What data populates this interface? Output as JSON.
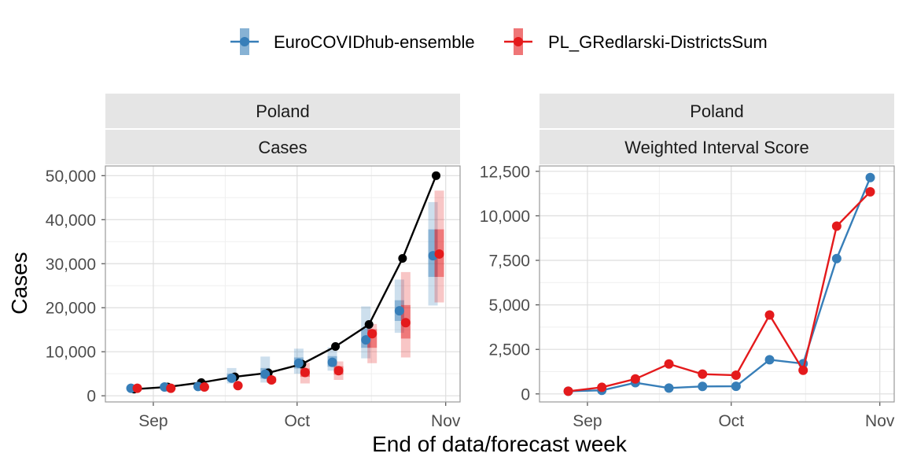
{
  "legend": [
    {
      "name": "EuroCOVIDhub-ensemble",
      "color": "#377EB8"
    },
    {
      "name": "PL_GRedlarski-DistrictsSum",
      "color": "#E41A1C"
    }
  ],
  "x_axis_title": "End of data/forecast week",
  "y_axis_title": "Cases",
  "chart_data": [
    {
      "type": "line",
      "strips": [
        "Poland",
        "Cases"
      ],
      "x_ticks": [
        {
          "date": "2021-09-01",
          "label": "Sep"
        },
        {
          "date": "2021-10-01",
          "label": "Oct"
        },
        {
          "date": "2021-11-01",
          "label": "Nov"
        }
      ],
      "xlim": [
        "2021-08-22",
        "2021-11-04"
      ],
      "y_ticks": [
        0,
        10000,
        20000,
        30000,
        40000,
        50000
      ],
      "y_tick_labels": [
        "0",
        "10,000",
        "20,000",
        "30,000",
        "40,000",
        "50,000"
      ],
      "ylim": [
        -1400,
        52200
      ],
      "grid": true,
      "observed": {
        "color": "#000000",
        "points": [
          {
            "x": "2021-08-28",
            "y": 1500
          },
          {
            "x": "2021-09-04",
            "y": 2000
          },
          {
            "x": "2021-09-11",
            "y": 3000
          },
          {
            "x": "2021-09-18",
            "y": 4300
          },
          {
            "x": "2021-09-25",
            "y": 5200
          },
          {
            "x": "2021-10-02",
            "y": 7200
          },
          {
            "x": "2021-10-09",
            "y": 11200
          },
          {
            "x": "2021-10-16",
            "y": 16200
          },
          {
            "x": "2021-10-23",
            "y": 31200
          },
          {
            "x": "2021-10-30",
            "y": 50000
          }
        ]
      },
      "forecasts": [
        {
          "model": "EuroCOVIDhub-ensemble",
          "color": "#377EB8",
          "points": [
            {
              "x": "2021-08-28",
              "median": 1700,
              "lo90": 1400,
              "hi90": 2100,
              "lo50": 1500,
              "hi50": 1900
            },
            {
              "x": "2021-09-04",
              "median": 2000,
              "lo90": 1600,
              "hi90": 2600,
              "lo50": 1800,
              "hi50": 2300
            },
            {
              "x": "2021-09-11",
              "median": 2100,
              "lo90": 1700,
              "hi90": 2800,
              "lo50": 1900,
              "hi50": 2500
            },
            {
              "x": "2021-09-18",
              "median": 4000,
              "lo90": 2800,
              "hi90": 6300,
              "lo50": 3400,
              "hi50": 5000
            },
            {
              "x": "2021-09-25",
              "median": 4900,
              "lo90": 3000,
              "hi90": 8900,
              "lo50": 3900,
              "hi50": 6300
            },
            {
              "x": "2021-10-02",
              "median": 7400,
              "lo90": 5000,
              "hi90": 10700,
              "lo50": 6200,
              "hi50": 8700
            },
            {
              "x": "2021-10-09",
              "median": 7600,
              "lo90": 5700,
              "hi90": 11000,
              "lo50": 6600,
              "hi50": 9000
            },
            {
              "x": "2021-10-16",
              "median": 12700,
              "lo90": 8500,
              "hi90": 20300,
              "lo50": 10900,
              "hi50": 15300
            },
            {
              "x": "2021-10-23",
              "median": 19300,
              "lo90": 14300,
              "hi90": 26400,
              "lo50": 17000,
              "hi50": 21700
            },
            {
              "x": "2021-10-30",
              "median": 31800,
              "lo90": 20500,
              "hi90": 44000,
              "lo50": 27000,
              "hi50": 37800
            }
          ]
        },
        {
          "model": "PL_GRedlarski-DistrictsSum",
          "color": "#E41A1C",
          "points": [
            {
              "x": "2021-08-28",
              "median": 1700,
              "lo90": 1500,
              "hi90": 1900,
              "lo50": 1600,
              "hi50": 1800
            },
            {
              "x": "2021-09-04",
              "median": 1700,
              "lo90": 1500,
              "hi90": 1900,
              "lo50": 1600,
              "hi50": 1800
            },
            {
              "x": "2021-09-11",
              "median": 2000,
              "lo90": 1800,
              "hi90": 2200,
              "lo50": 1900,
              "hi50": 2100
            },
            {
              "x": "2021-09-18",
              "median": 2300,
              "lo90": 2100,
              "hi90": 2600,
              "lo50": 2200,
              "hi50": 2400
            },
            {
              "x": "2021-09-25",
              "median": 3600,
              "lo90": 2900,
              "hi90": 4400,
              "lo50": 3200,
              "hi50": 4000
            },
            {
              "x": "2021-10-02",
              "median": 5300,
              "lo90": 2800,
              "hi90": 7500,
              "lo50": 4300,
              "hi50": 6200
            },
            {
              "x": "2021-10-09",
              "median": 5700,
              "lo90": 3600,
              "hi90": 7800,
              "lo50": 4800,
              "hi50": 6700
            },
            {
              "x": "2021-10-16",
              "median": 14100,
              "lo90": 7400,
              "hi90": 16300,
              "lo50": 10900,
              "hi50": 15100
            },
            {
              "x": "2021-10-23",
              "median": 16600,
              "lo90": 8700,
              "hi90": 28100,
              "lo50": 13000,
              "hi50": 20600
            },
            {
              "x": "2021-10-30",
              "median": 32200,
              "lo90": 21200,
              "hi90": 46600,
              "lo50": 27000,
              "hi50": 37800
            }
          ]
        }
      ]
    },
    {
      "type": "line",
      "strips": [
        "Poland",
        "Weighted Interval Score"
      ],
      "x_ticks": [
        {
          "date": "2021-09-01",
          "label": "Sep"
        },
        {
          "date": "2021-10-01",
          "label": "Oct"
        },
        {
          "date": "2021-11-01",
          "label": "Nov"
        }
      ],
      "xlim": [
        "2021-08-22",
        "2021-11-04"
      ],
      "y_ticks": [
        0,
        2500,
        5000,
        7500,
        10000,
        12500
      ],
      "y_tick_labels": [
        "0",
        "2,500",
        "5,000",
        "7,500",
        "10,000",
        "12,500"
      ],
      "ylim": [
        -450,
        12800
      ],
      "grid": true,
      "series": [
        {
          "name": "EuroCOVIDhub-ensemble",
          "color": "#377EB8",
          "points": [
            {
              "x": "2021-08-28",
              "y": 150
            },
            {
              "x": "2021-09-04",
              "y": 200
            },
            {
              "x": "2021-09-11",
              "y": 630
            },
            {
              "x": "2021-09-18",
              "y": 330
            },
            {
              "x": "2021-09-25",
              "y": 420
            },
            {
              "x": "2021-10-02",
              "y": 430
            },
            {
              "x": "2021-10-09",
              "y": 1920
            },
            {
              "x": "2021-10-16",
              "y": 1700
            },
            {
              "x": "2021-10-23",
              "y": 7600
            },
            {
              "x": "2021-10-30",
              "y": 12150
            }
          ]
        },
        {
          "name": "PL_GRedlarski-DistrictsSum",
          "color": "#E41A1C",
          "points": [
            {
              "x": "2021-08-28",
              "y": 150
            },
            {
              "x": "2021-09-04",
              "y": 370
            },
            {
              "x": "2021-09-11",
              "y": 840
            },
            {
              "x": "2021-09-18",
              "y": 1680
            },
            {
              "x": "2021-09-25",
              "y": 1110
            },
            {
              "x": "2021-10-02",
              "y": 1050
            },
            {
              "x": "2021-10-09",
              "y": 4430
            },
            {
              "x": "2021-10-16",
              "y": 1330
            },
            {
              "x": "2021-10-23",
              "y": 9420
            },
            {
              "x": "2021-10-30",
              "y": 11350
            }
          ]
        }
      ]
    }
  ]
}
